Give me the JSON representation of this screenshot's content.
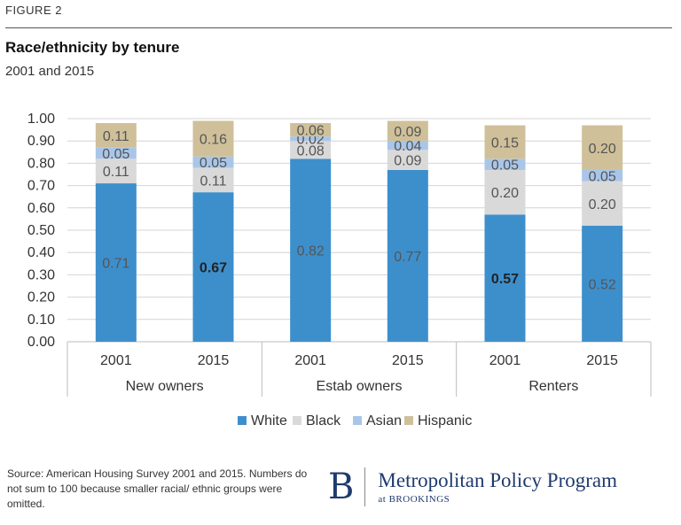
{
  "figure_label": "FIGURE 2",
  "title": "Race/ethnicity by tenure",
  "subtitle": "2001 and 2015",
  "source": "Source: American Housing Survey 2001 and 2015. Numbers do not sum to 100 because smaller racial/ ethnic groups were omitted.",
  "logo": {
    "letter": "B",
    "name": "Metropolitan Policy Program",
    "sub": "at BROOKINGS"
  },
  "colors": {
    "White": "#3d8fcc",
    "Black": "#d9d9d9",
    "Asian": "#a9c6e8",
    "Hispanic": "#cfc09a"
  },
  "chart_data": {
    "type": "bar",
    "stacked": true,
    "categories": [
      "2001",
      "2015",
      "2001",
      "2015",
      "2001",
      "2015"
    ],
    "groups": [
      {
        "label": "New owners",
        "bars": 2
      },
      {
        "label": "Estab owners",
        "bars": 2
      },
      {
        "label": "Renters",
        "bars": 2
      }
    ],
    "series": [
      {
        "name": "White",
        "values": [
          0.71,
          0.67,
          0.82,
          0.77,
          0.57,
          0.52
        ],
        "labels": [
          "0.71",
          "0.67",
          "0.82",
          "0.77",
          "0.57",
          "0.52"
        ]
      },
      {
        "name": "Black",
        "values": [
          0.11,
          0.11,
          0.08,
          0.09,
          0.2,
          0.2
        ],
        "labels": [
          "0.11",
          "0.11",
          "0.08",
          "0.09",
          "0.20",
          "0.20"
        ]
      },
      {
        "name": "Asian",
        "values": [
          0.05,
          0.05,
          0.02,
          0.04,
          0.05,
          0.05
        ],
        "labels": [
          "0.05",
          "0.05",
          "0.02",
          "0.04",
          "0.05",
          "0.05"
        ]
      },
      {
        "name": "Hispanic",
        "values": [
          0.11,
          0.16,
          0.06,
          0.09,
          0.15,
          0.2
        ],
        "labels": [
          "0.11",
          "0.16",
          "0.06",
          "0.09",
          "0.15",
          "0.20"
        ]
      }
    ],
    "ylim": [
      0,
      1.0
    ],
    "yticks": [
      "0.00",
      "0.10",
      "0.20",
      "0.30",
      "0.40",
      "0.50",
      "0.60",
      "0.70",
      "0.80",
      "0.90",
      "1.00"
    ],
    "grid": true,
    "legend": "bottom"
  }
}
